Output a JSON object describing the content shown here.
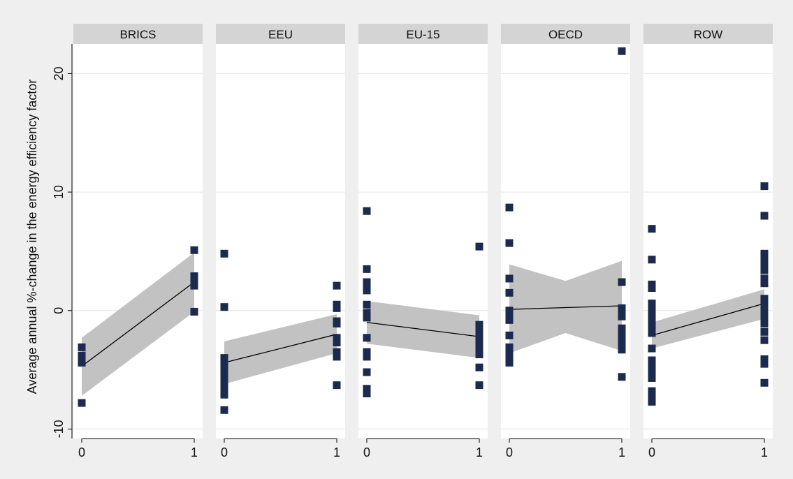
{
  "chart_data": {
    "type": "scatter",
    "ylabel": "Average annual %-change in the energy efficiency factor",
    "xlabel": "",
    "ylim": [
      -10.8,
      22.5
    ],
    "yticks": [
      -10,
      0,
      10,
      20
    ],
    "xticks": [
      0,
      1
    ],
    "grid": true,
    "legend": "none",
    "colors": {
      "marker": "#1b2a4e",
      "band": "#c2c2c2",
      "fit_line": "#000000",
      "strip": "#d4d4d4",
      "panel": "#ffffff",
      "background": "#efefef",
      "grid": "#e8e8e8"
    },
    "panels": [
      {
        "label": "BRICS",
        "points": [
          [
            0,
            -3.1
          ],
          [
            0,
            -3.8
          ],
          [
            0,
            -4.1
          ],
          [
            0,
            -4.4
          ],
          [
            0,
            -7.8
          ],
          [
            1,
            5.1
          ],
          [
            1,
            2.9
          ],
          [
            1,
            2.6
          ],
          [
            1,
            2.1
          ],
          [
            1,
            -0.1
          ]
        ],
        "fit": [
          [
            0,
            -4.7
          ],
          [
            1,
            2.4
          ]
        ],
        "band": {
          "lower": [
            [
              0,
              -7.2
            ],
            [
              1,
              -0.1
            ]
          ],
          "upper": [
            [
              0,
              -2.3
            ],
            [
              1,
              4.9
            ]
          ]
        }
      },
      {
        "label": "EEU",
        "points": [
          [
            0,
            4.8
          ],
          [
            0,
            0.3
          ],
          [
            0,
            -4.0
          ],
          [
            0,
            -4.5
          ],
          [
            0,
            -5.1
          ],
          [
            0,
            -5.5
          ],
          [
            0,
            -5.9
          ],
          [
            0,
            -6.3
          ],
          [
            0,
            -6.7
          ],
          [
            0,
            -7.1
          ],
          [
            0,
            -8.4
          ],
          [
            1,
            2.1
          ],
          [
            1,
            0.5
          ],
          [
            1,
            0.2
          ],
          [
            1,
            -0.9
          ],
          [
            1,
            -1.1
          ],
          [
            1,
            -2.3
          ],
          [
            1,
            -2.7
          ],
          [
            1,
            -3.5
          ],
          [
            1,
            -3.9
          ],
          [
            1,
            -6.3
          ]
        ],
        "fit": [
          [
            0,
            -4.4
          ],
          [
            1,
            -2.0
          ]
        ],
        "band": {
          "lower": [
            [
              0,
              -6.2
            ],
            [
              1,
              -3.6
            ]
          ],
          "upper": [
            [
              0,
              -2.6
            ],
            [
              1,
              -0.3
            ]
          ]
        }
      },
      {
        "label": "EU-15",
        "points": [
          [
            0,
            8.4
          ],
          [
            0,
            3.5
          ],
          [
            0,
            2.4
          ],
          [
            0,
            2.1
          ],
          [
            0,
            1.7
          ],
          [
            0,
            0.5
          ],
          [
            0,
            -0.2
          ],
          [
            0,
            -0.6
          ],
          [
            0,
            -2.3
          ],
          [
            0,
            -3.5
          ],
          [
            0,
            -3.9
          ],
          [
            0,
            -5.2
          ],
          [
            0,
            -6.6
          ],
          [
            0,
            -7.0
          ],
          [
            1,
            5.4
          ],
          [
            1,
            -1.2
          ],
          [
            1,
            -1.6
          ],
          [
            1,
            -2.1
          ],
          [
            1,
            -2.5
          ],
          [
            1,
            -2.9
          ],
          [
            1,
            -3.3
          ],
          [
            1,
            -3.7
          ],
          [
            1,
            -4.8
          ],
          [
            1,
            -6.3
          ]
        ],
        "fit": [
          [
            0,
            -1.0
          ],
          [
            1,
            -2.2
          ]
        ],
        "band": {
          "lower": [
            [
              0,
              -2.8
            ],
            [
              1,
              -4.0
            ]
          ],
          "upper": [
            [
              0,
              0.8
            ],
            [
              1,
              -0.4
            ]
          ]
        }
      },
      {
        "label": "OECD",
        "points": [
          [
            0,
            8.7
          ],
          [
            0,
            5.7
          ],
          [
            0,
            2.7
          ],
          [
            0,
            1.5
          ],
          [
            0,
            0.0
          ],
          [
            0,
            -0.4
          ],
          [
            0,
            -0.8
          ],
          [
            0,
            -2.1
          ],
          [
            0,
            -3.1
          ],
          [
            0,
            -3.6
          ],
          [
            0,
            -4.1
          ],
          [
            0,
            -4.4
          ],
          [
            1,
            21.9
          ],
          [
            1,
            2.4
          ],
          [
            1,
            0.2
          ],
          [
            1,
            -0.1
          ],
          [
            1,
            -0.5
          ],
          [
            1,
            -1.5
          ],
          [
            1,
            -1.9
          ],
          [
            1,
            -2.3
          ],
          [
            1,
            -2.8
          ],
          [
            1,
            -3.3
          ],
          [
            1,
            -5.6
          ]
        ],
        "fit": [
          [
            0,
            0.1
          ],
          [
            1,
            0.4
          ]
        ],
        "band": {
          "lower": [
            [
              0,
              -3.6
            ],
            [
              0.5,
              -1.9
            ],
            [
              1,
              -3.4
            ]
          ],
          "upper": [
            [
              0,
              3.9
            ],
            [
              0.5,
              2.5
            ],
            [
              1,
              4.2
            ]
          ]
        }
      },
      {
        "label": "ROW",
        "points": [
          [
            0,
            6.9
          ],
          [
            0,
            4.3
          ],
          [
            0,
            2.2
          ],
          [
            0,
            1.9
          ],
          [
            0,
            0.6
          ],
          [
            0,
            0.2
          ],
          [
            0,
            -0.2
          ],
          [
            0,
            -0.6
          ],
          [
            0,
            -1.0
          ],
          [
            0,
            -1.4
          ],
          [
            0,
            -1.9
          ],
          [
            0,
            -3.2
          ],
          [
            0,
            -4.2
          ],
          [
            0,
            -4.6
          ],
          [
            0,
            -5.1
          ],
          [
            0,
            -5.7
          ],
          [
            0,
            -6.8
          ],
          [
            0,
            -7.2
          ],
          [
            0,
            -7.7
          ],
          [
            1,
            10.5
          ],
          [
            1,
            8.0
          ],
          [
            1,
            4.8
          ],
          [
            1,
            4.3
          ],
          [
            1,
            3.8
          ],
          [
            1,
            3.4
          ],
          [
            1,
            2.7
          ],
          [
            1,
            2.3
          ],
          [
            1,
            1.0
          ],
          [
            1,
            0.6
          ],
          [
            1,
            0.2
          ],
          [
            1,
            -0.3
          ],
          [
            1,
            -0.7
          ],
          [
            1,
            -1.1
          ],
          [
            1,
            -1.8
          ],
          [
            1,
            -2.5
          ],
          [
            1,
            -4.1
          ],
          [
            1,
            -4.5
          ],
          [
            1,
            -6.1
          ]
        ],
        "fit": [
          [
            0,
            -2.1
          ],
          [
            1,
            0.6
          ]
        ],
        "band": {
          "lower": [
            [
              0,
              -3.2
            ],
            [
              1,
              -0.7
            ]
          ],
          "upper": [
            [
              0,
              -1.0
            ],
            [
              1,
              1.8
            ]
          ]
        }
      }
    ]
  }
}
